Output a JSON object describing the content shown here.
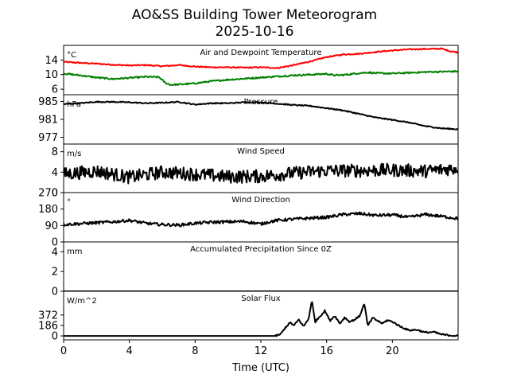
{
  "title": "AO&SS Building Tower Meteorogram",
  "subtitle": "2025-10-16",
  "chart_data": {
    "type": "line",
    "xlabel": "Time (UTC)",
    "xlim": [
      0,
      24
    ],
    "xticks": [
      0,
      4,
      8,
      12,
      16,
      20
    ],
    "panels": [
      {
        "key": "temp",
        "title": "Air and Dewpoint Temperature",
        "unit": "°C",
        "ylim": [
          4.5,
          18
        ],
        "yticks": [
          6,
          10,
          14
        ],
        "series": [
          {
            "name": "Air Temperature",
            "color": "#ff0000",
            "noise": 0.15,
            "points": [
              [
                0,
                13.5
              ],
              [
                1,
                13.2
              ],
              [
                2,
                13.0
              ],
              [
                3,
                12.7
              ],
              [
                4,
                12.5
              ],
              [
                5,
                12.6
              ],
              [
                6,
                12.3
              ],
              [
                7,
                12.6
              ],
              [
                8,
                12.2
              ],
              [
                9,
                12.0
              ],
              [
                10,
                12.0
              ],
              [
                11,
                11.9
              ],
              [
                12,
                12.0
              ],
              [
                13,
                11.8
              ],
              [
                14,
                12.6
              ],
              [
                15,
                13.6
              ],
              [
                16,
                14.8
              ],
              [
                17,
                15.5
              ],
              [
                18,
                15.7
              ],
              [
                19,
                16.2
              ],
              [
                20,
                16.6
              ],
              [
                21,
                16.9
              ],
              [
                22,
                17.0
              ],
              [
                23,
                17.1
              ],
              [
                23.5,
                16.4
              ],
              [
                24,
                16.1
              ]
            ]
          },
          {
            "name": "Dewpoint",
            "color": "#008000",
            "noise": 0.2,
            "points": [
              [
                0,
                10.3
              ],
              [
                1,
                9.8
              ],
              [
                2,
                9.2
              ],
              [
                3,
                8.8
              ],
              [
                4,
                9.1
              ],
              [
                5,
                9.4
              ],
              [
                5.8,
                9.3
              ],
              [
                6.2,
                7.7
              ],
              [
                6.5,
                7.2
              ],
              [
                7,
                7.3
              ],
              [
                8,
                7.6
              ],
              [
                9,
                8.2
              ],
              [
                10,
                8.6
              ],
              [
                11,
                8.9
              ],
              [
                12,
                9.2
              ],
              [
                13,
                9.5
              ],
              [
                14,
                9.8
              ],
              [
                15,
                10.0
              ],
              [
                16,
                10.2
              ],
              [
                16.5,
                9.8
              ],
              [
                17,
                9.9
              ],
              [
                18,
                10.4
              ],
              [
                18.5,
                10.6
              ],
              [
                19,
                10.4
              ],
              [
                20,
                10.3
              ],
              [
                21,
                10.5
              ],
              [
                22,
                10.7
              ],
              [
                23,
                10.8
              ],
              [
                24,
                10.9
              ]
            ]
          }
        ]
      },
      {
        "key": "pressure",
        "title": "Pressure",
        "unit": "hPa",
        "ylim": [
          975.5,
          986.5
        ],
        "yticks": [
          977,
          981,
          985
        ],
        "series": [
          {
            "name": "Pressure",
            "color": "#000000",
            "noise": 0.12,
            "points": [
              [
                0,
                984.4
              ],
              [
                1,
                984.6
              ],
              [
                2,
                984.9
              ],
              [
                3,
                984.9
              ],
              [
                4,
                984.8
              ],
              [
                5,
                984.6
              ],
              [
                6,
                984.7
              ],
              [
                7,
                984.9
              ],
              [
                7.5,
                984.6
              ],
              [
                8,
                984.3
              ],
              [
                9,
                984.6
              ],
              [
                10,
                984.6
              ],
              [
                11,
                984.8
              ],
              [
                12,
                984.8
              ],
              [
                13,
                984.5
              ],
              [
                14,
                984.2
              ],
              [
                15,
                984.0
              ],
              [
                16,
                983.5
              ],
              [
                17,
                983.0
              ],
              [
                18,
                982.2
              ],
              [
                19,
                981.4
              ],
              [
                20,
                980.9
              ],
              [
                21,
                980.3
              ],
              [
                22,
                979.5
              ],
              [
                23,
                979.0
              ],
              [
                24,
                978.8
              ]
            ]
          }
        ]
      },
      {
        "key": "windspeed",
        "title": "Wind Speed",
        "unit": "m/s",
        "ylim": [
          0,
          9.5
        ],
        "yticks": [
          0,
          4,
          8
        ],
        "series": [
          {
            "name": "Wind Speed",
            "color": "#000000",
            "noise": 1.3,
            "points": [
              [
                0,
                3.6
              ],
              [
                2,
                4.2
              ],
              [
                4,
                3.0
              ],
              [
                6,
                4.0
              ],
              [
                8,
                3.6
              ],
              [
                10,
                3.1
              ],
              [
                12,
                3.2
              ],
              [
                14,
                3.8
              ],
              [
                16,
                4.3
              ],
              [
                18,
                4.3
              ],
              [
                20,
                4.4
              ],
              [
                22,
                4.2
              ],
              [
                24,
                4.8
              ]
            ]
          }
        ]
      },
      {
        "key": "winddir",
        "title": "Wind Direction",
        "unit": "°",
        "ylim": [
          0,
          270
        ],
        "yticks": [
          0,
          90,
          180,
          270
        ],
        "series": [
          {
            "name": "Wind Direction",
            "color": "#000000",
            "noise": 8,
            "points": [
              [
                0,
                95
              ],
              [
                2,
                105
              ],
              [
                3,
                110
              ],
              [
                4,
                118
              ],
              [
                5,
                102
              ],
              [
                6,
                95
              ],
              [
                7,
                92
              ],
              [
                8,
                102
              ],
              [
                9,
                108
              ],
              [
                10,
                110
              ],
              [
                11,
                112
              ],
              [
                12,
                98
              ],
              [
                12.5,
                110
              ],
              [
                13,
                118
              ],
              [
                14,
                125
              ],
              [
                15,
                130
              ],
              [
                16,
                135
              ],
              [
                17,
                150
              ],
              [
                18,
                155
              ],
              [
                19,
                145
              ],
              [
                20,
                148
              ],
              [
                21,
                135
              ],
              [
                22,
                150
              ],
              [
                23,
                140
              ],
              [
                24,
                128
              ]
            ]
          }
        ]
      },
      {
        "key": "precip",
        "title": "Accumulated Precipitation Since 0Z",
        "unit": "mm",
        "ylim": [
          0,
          5
        ],
        "yticks": [
          0,
          2,
          4
        ],
        "series": [
          {
            "name": "Accumulated Precipitation",
            "color": "#000000",
            "noise": 0,
            "points": [
              [
                0,
                0
              ],
              [
                24,
                0
              ]
            ]
          }
        ]
      },
      {
        "key": "solar",
        "title": "Solar Flux",
        "unit": "W/m^2",
        "ylim": [
          -70,
          795
        ],
        "yticks": [
          0,
          186,
          372
        ],
        "series": [
          {
            "name": "Solar Flux",
            "color": "#000000",
            "noise": 15,
            "points": [
              [
                0,
                0
              ],
              [
                12.9,
                0
              ],
              [
                13.2,
                30
              ],
              [
                13.5,
                150
              ],
              [
                13.8,
                240
              ],
              [
                14.0,
                180
              ],
              [
                14.3,
                290
              ],
              [
                14.6,
                170
              ],
              [
                14.9,
                300
              ],
              [
                15.1,
                630
              ],
              [
                15.3,
                250
              ],
              [
                15.6,
                350
              ],
              [
                15.9,
                450
              ],
              [
                16.2,
                270
              ],
              [
                16.5,
                360
              ],
              [
                16.8,
                220
              ],
              [
                17.1,
                330
              ],
              [
                17.4,
                250
              ],
              [
                17.7,
                290
              ],
              [
                18.0,
                350
              ],
              [
                18.3,
                580
              ],
              [
                18.5,
                180
              ],
              [
                18.8,
                320
              ],
              [
                19.1,
                270
              ],
              [
                19.4,
                220
              ],
              [
                19.7,
                280
              ],
              [
                20.1,
                240
              ],
              [
                20.4,
                180
              ],
              [
                20.7,
                140
              ],
              [
                21.0,
                100
              ],
              [
                21.5,
                110
              ],
              [
                22.0,
                60
              ],
              [
                22.5,
                70
              ],
              [
                23.0,
                25
              ],
              [
                23.5,
                10
              ],
              [
                24,
                0
              ]
            ]
          }
        ]
      }
    ]
  }
}
